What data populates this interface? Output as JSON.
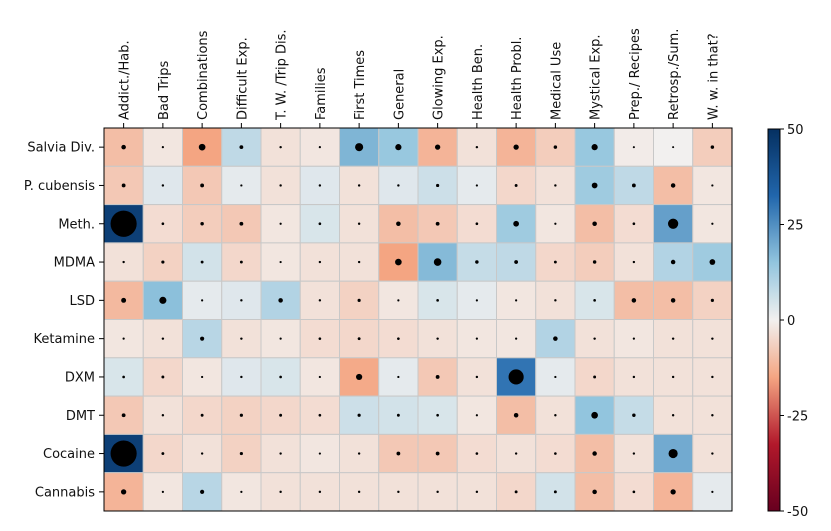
{
  "chart_data": {
    "type": "heatmap",
    "columns": [
      "Addict./Hab.",
      "Bad Trips",
      "Combinations",
      "Difficult Exp.",
      "T. W. /Trip Dis.",
      "Families",
      "First Times",
      "General",
      "Glowing Exp.",
      "Health Ben.",
      "Health Probl.",
      "Medical Use",
      "Mystical Exp.",
      "Prep./ Recipes",
      "Retrosp./Sum.",
      "W. w. in that?"
    ],
    "rows": [
      "Salvia Div.",
      "P. cubensis",
      "Meth.",
      "MDMA",
      "LSD",
      "Ketamine",
      "DXM",
      "DMT",
      "Cocaine",
      "Cannabis"
    ],
    "values": [
      [
        -10,
        -2,
        -15,
        8,
        -3,
        -2,
        18,
        14,
        -12,
        -3,
        -12,
        -7,
        14,
        -1,
        0,
        -7
      ],
      [
        -8,
        3,
        -8,
        2,
        -3,
        3,
        -3,
        3,
        6,
        2,
        -5,
        -3,
        13,
        8,
        -10,
        -2
      ],
      [
        45,
        -4,
        -7,
        -8,
        -2,
        4,
        -3,
        -10,
        -8,
        -4,
        13,
        -2,
        -10,
        -4,
        22,
        -2
      ],
      [
        -3,
        -6,
        5,
        -5,
        -2,
        -3,
        -3,
        -15,
        17,
        7,
        8,
        -5,
        -7,
        -3,
        10,
        13
      ],
      [
        -11,
        16,
        2,
        3,
        10,
        -3,
        -6,
        -2,
        4,
        2,
        -2,
        -3,
        4,
        -10,
        -10,
        -6
      ],
      [
        -2,
        -3,
        9,
        -3,
        -2,
        -4,
        -5,
        -4,
        -3,
        -2,
        -2,
        10,
        -3,
        -2,
        -3,
        -3
      ],
      [
        4,
        -5,
        -2,
        3,
        4,
        -2,
        -14,
        2,
        -8,
        -3,
        30,
        2,
        -5,
        -3,
        -3,
        -3
      ],
      [
        -8,
        -3,
        -5,
        -6,
        -5,
        -4,
        6,
        5,
        4,
        -2,
        -10,
        -3,
        15,
        7,
        -3,
        -3
      ],
      [
        45,
        -5,
        -3,
        -6,
        -3,
        -2,
        -3,
        -8,
        -8,
        -4,
        -3,
        -4,
        -10,
        -3,
        20,
        -3
      ],
      [
        -12,
        -2,
        9,
        -2,
        -3,
        -3,
        -3,
        -3,
        -3,
        -3,
        -5,
        5,
        -10,
        -4,
        -12,
        2
      ]
    ],
    "colorbar": {
      "min": -50,
      "max": 50,
      "ticks": [
        "50",
        "25",
        "0",
        "-25",
        "-50"
      ],
      "tick_values": [
        50,
        25,
        0,
        -25,
        -50
      ]
    },
    "colormap": {
      "low": "#67001f",
      "mid": "#f2f0ef",
      "high": "#053061"
    },
    "marker_color": "#000000",
    "grid_color": "#c8c8c8"
  }
}
